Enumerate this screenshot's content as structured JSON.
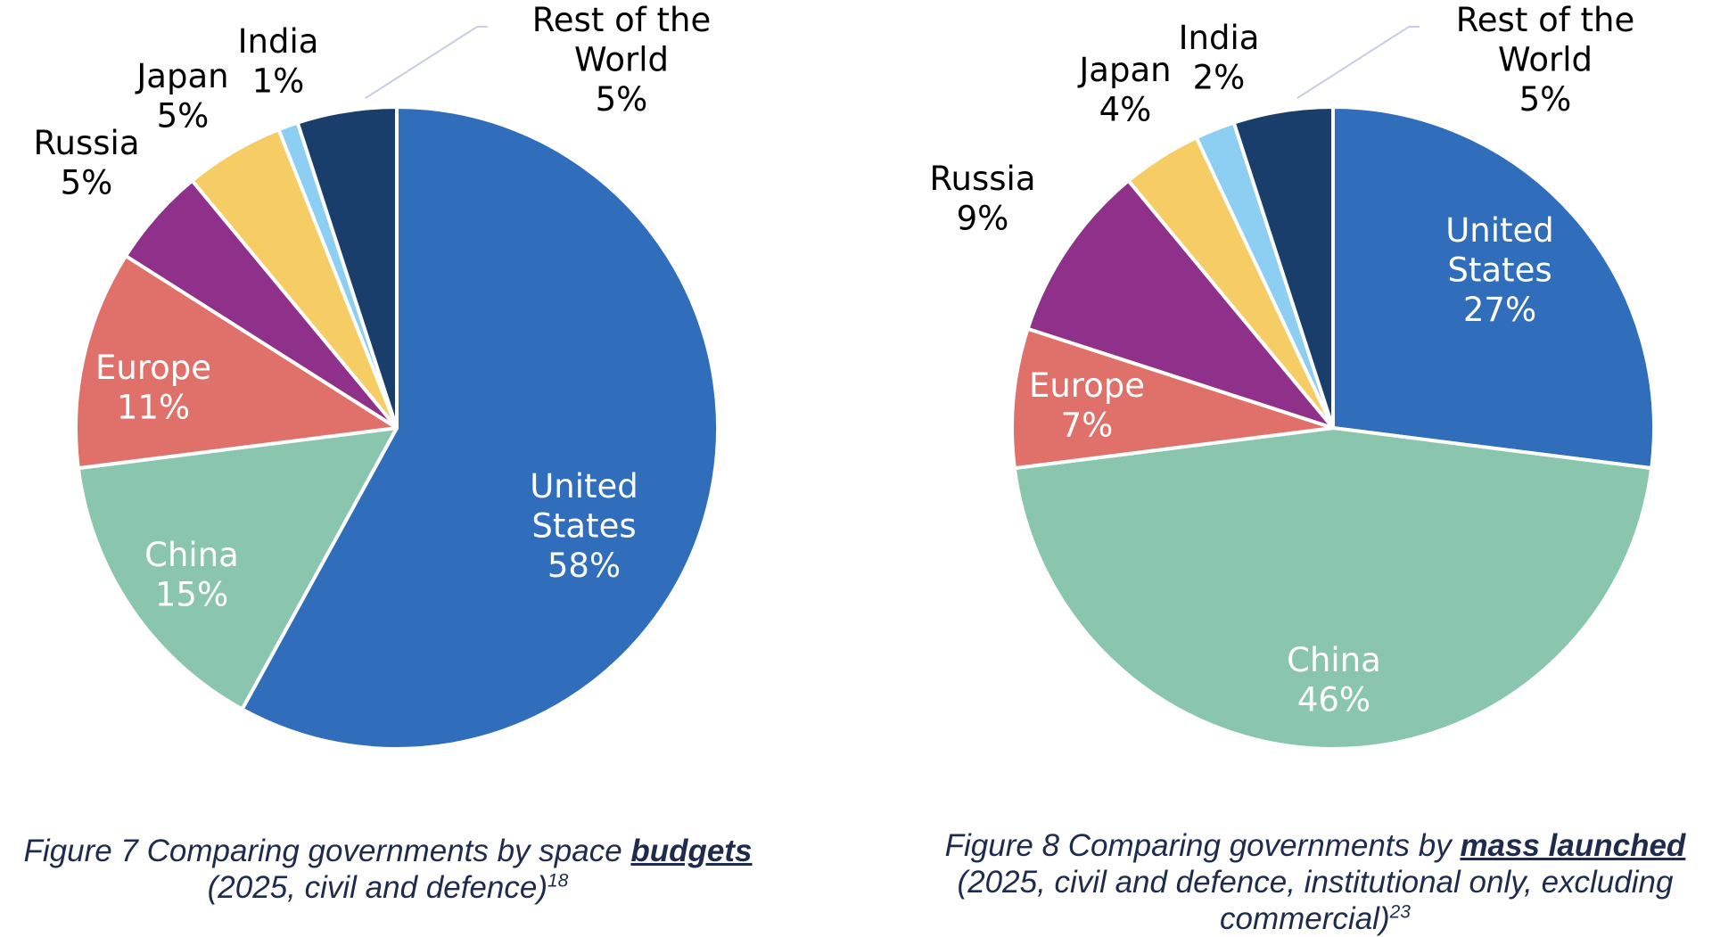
{
  "chart_data": [
    {
      "type": "pie",
      "title": "",
      "slices": [
        {
          "label": "United States",
          "value": 58,
          "display": "58%",
          "color": "#306ebb"
        },
        {
          "label": "China",
          "value": 15,
          "display": "15%",
          "color": "#8ac6ae"
        },
        {
          "label": "Europe",
          "value": 11,
          "display": "11%",
          "color": "#e0706a"
        },
        {
          "label": "Russia",
          "value": 5,
          "display": "5%",
          "color": "#8f318a"
        },
        {
          "label": "Japan",
          "value": 5,
          "display": "5%",
          "color": "#f6cd64"
        },
        {
          "label": "India",
          "value": 1,
          "display": "1%",
          "color": "#8ccff3"
        },
        {
          "label": "Rest of the World",
          "value": 5,
          "display": "5%",
          "color": "#1a3e6b"
        }
      ],
      "caption": {
        "prefix": "Figure 7 Comparing governments by space ",
        "emphasis": "budgets",
        "line2": "(2025, civil and defence)",
        "footnote": "18"
      }
    },
    {
      "type": "pie",
      "title": "",
      "slices": [
        {
          "label": "United States",
          "value": 27,
          "display": "27%",
          "color": "#306ebb"
        },
        {
          "label": "China",
          "value": 46,
          "display": "46%",
          "color": "#8ac6ae"
        },
        {
          "label": "Europe",
          "value": 7,
          "display": "7%",
          "color": "#e0706a"
        },
        {
          "label": "Russia",
          "value": 9,
          "display": "9%",
          "color": "#8f318a"
        },
        {
          "label": "Japan",
          "value": 4,
          "display": "4%",
          "color": "#f6cd64"
        },
        {
          "label": "India",
          "value": 2,
          "display": "2%",
          "color": "#8ccff3"
        },
        {
          "label": "Rest of the World",
          "value": 5,
          "display": "5%",
          "color": "#1a3e6b"
        }
      ],
      "caption": {
        "prefix": "Figure 8 Comparing governments by ",
        "emphasis": "mass launched",
        "line2": "(2025, civil and defence, institutional only, excluding",
        "line3": "commercial)",
        "footnote": "23"
      }
    }
  ]
}
